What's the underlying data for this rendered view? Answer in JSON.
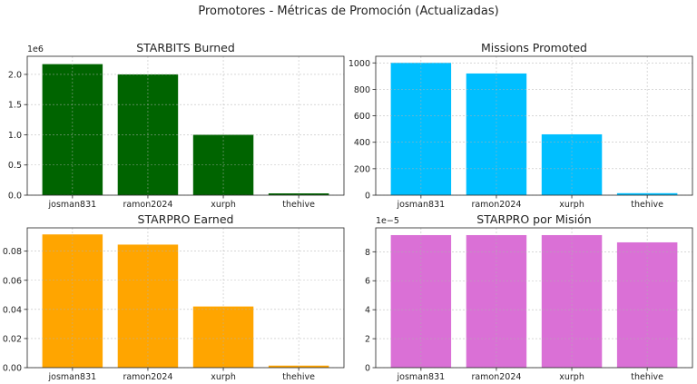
{
  "figure_title": "Promotores - Métricas de Promoción (Actualizadas)",
  "chart_data": [
    {
      "type": "bar",
      "title": "STARBITS Burned",
      "categories": [
        "josman831",
        "ramon2024",
        "xurph",
        "thehive"
      ],
      "values": [
        2170000,
        2000000,
        1000000,
        30000
      ],
      "color": "#006400",
      "ylim": [
        0,
        2300000
      ],
      "yticks": [
        0,
        500000,
        1000000,
        1500000,
        2000000
      ],
      "ytick_labels": [
        "0.0",
        "0.5",
        "1.0",
        "1.5",
        "2.0"
      ],
      "offset_label": "1e6",
      "grid": true
    },
    {
      "type": "bar",
      "title": "Missions Promoted",
      "categories": [
        "josman831",
        "ramon2024",
        "xurph",
        "thehive"
      ],
      "values": [
        1000,
        920,
        460,
        15
      ],
      "color": "#00BFFF",
      "ylim": [
        0,
        1050
      ],
      "yticks": [
        0,
        200,
        400,
        600,
        800,
        1000
      ],
      "ytick_labels": [
        "0",
        "200",
        "400",
        "600",
        "800",
        "1000"
      ],
      "offset_label": "",
      "grid": true
    },
    {
      "type": "bar",
      "title": "STARPRO Earned",
      "categories": [
        "josman831",
        "ramon2024",
        "xurph",
        "thehive"
      ],
      "values": [
        0.0915,
        0.0845,
        0.042,
        0.0014
      ],
      "color": "#FFA500",
      "ylim": [
        0,
        0.096
      ],
      "yticks": [
        0,
        0.02,
        0.04,
        0.06,
        0.08
      ],
      "ytick_labels": [
        "0.00",
        "0.02",
        "0.04",
        "0.06",
        "0.08"
      ],
      "offset_label": "",
      "grid": true
    },
    {
      "type": "bar",
      "title": "STARPRO por Misión",
      "categories": [
        "josman831",
        "ramon2024",
        "xurph",
        "thehive"
      ],
      "values": [
        9.15e-05,
        9.15e-05,
        9.15e-05,
        8.65e-05
      ],
      "color": "#DA70D6",
      "ylim": [
        0,
        9.65e-05
      ],
      "yticks": [
        0,
        2e-05,
        4e-05,
        6e-05,
        8e-05
      ],
      "ytick_labels": [
        "0",
        "2",
        "4",
        "6",
        "8"
      ],
      "offset_label": "1e−5",
      "grid": true
    }
  ]
}
